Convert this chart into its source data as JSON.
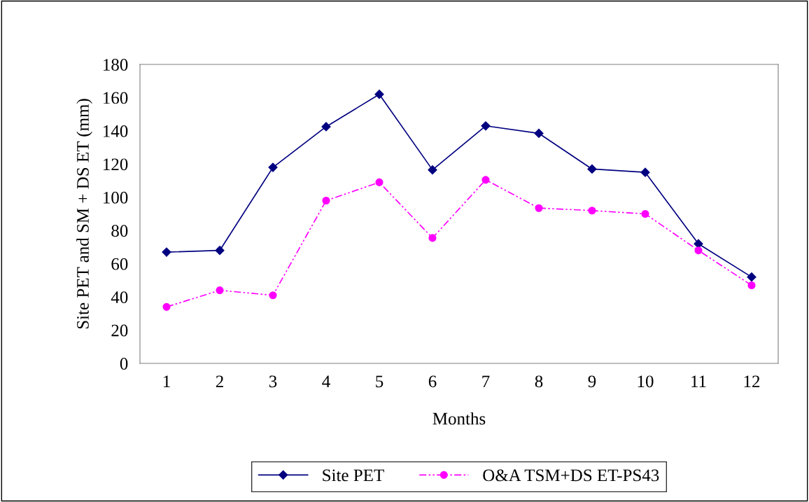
{
  "chart_data": {
    "type": "line",
    "xlabel": "Months",
    "ylabel": "Site PET and SM + DS ET (mm)",
    "categories": [
      "1",
      "2",
      "3",
      "4",
      "5",
      "6",
      "7",
      "8",
      "9",
      "10",
      "11",
      "12"
    ],
    "series": [
      {
        "name": "Site PET",
        "color": "#000080",
        "marker": "diamond",
        "line_style": "solid",
        "values": [
          67,
          68,
          118,
          142.5,
          162,
          116.5,
          143,
          138.5,
          117,
          115,
          72,
          52
        ]
      },
      {
        "name": "O&A TSM+DS ET-PS43",
        "color": "#ff00ff",
        "marker": "circle",
        "line_style": "dashdot",
        "values": [
          34,
          44,
          41,
          98,
          109,
          75.5,
          110.5,
          93.5,
          92,
          90,
          68,
          47
        ]
      }
    ],
    "ylim": [
      0,
      180
    ],
    "yticks": [
      0,
      20,
      40,
      60,
      80,
      100,
      120,
      140,
      160,
      180
    ],
    "grid": false,
    "legend": "bottom"
  }
}
